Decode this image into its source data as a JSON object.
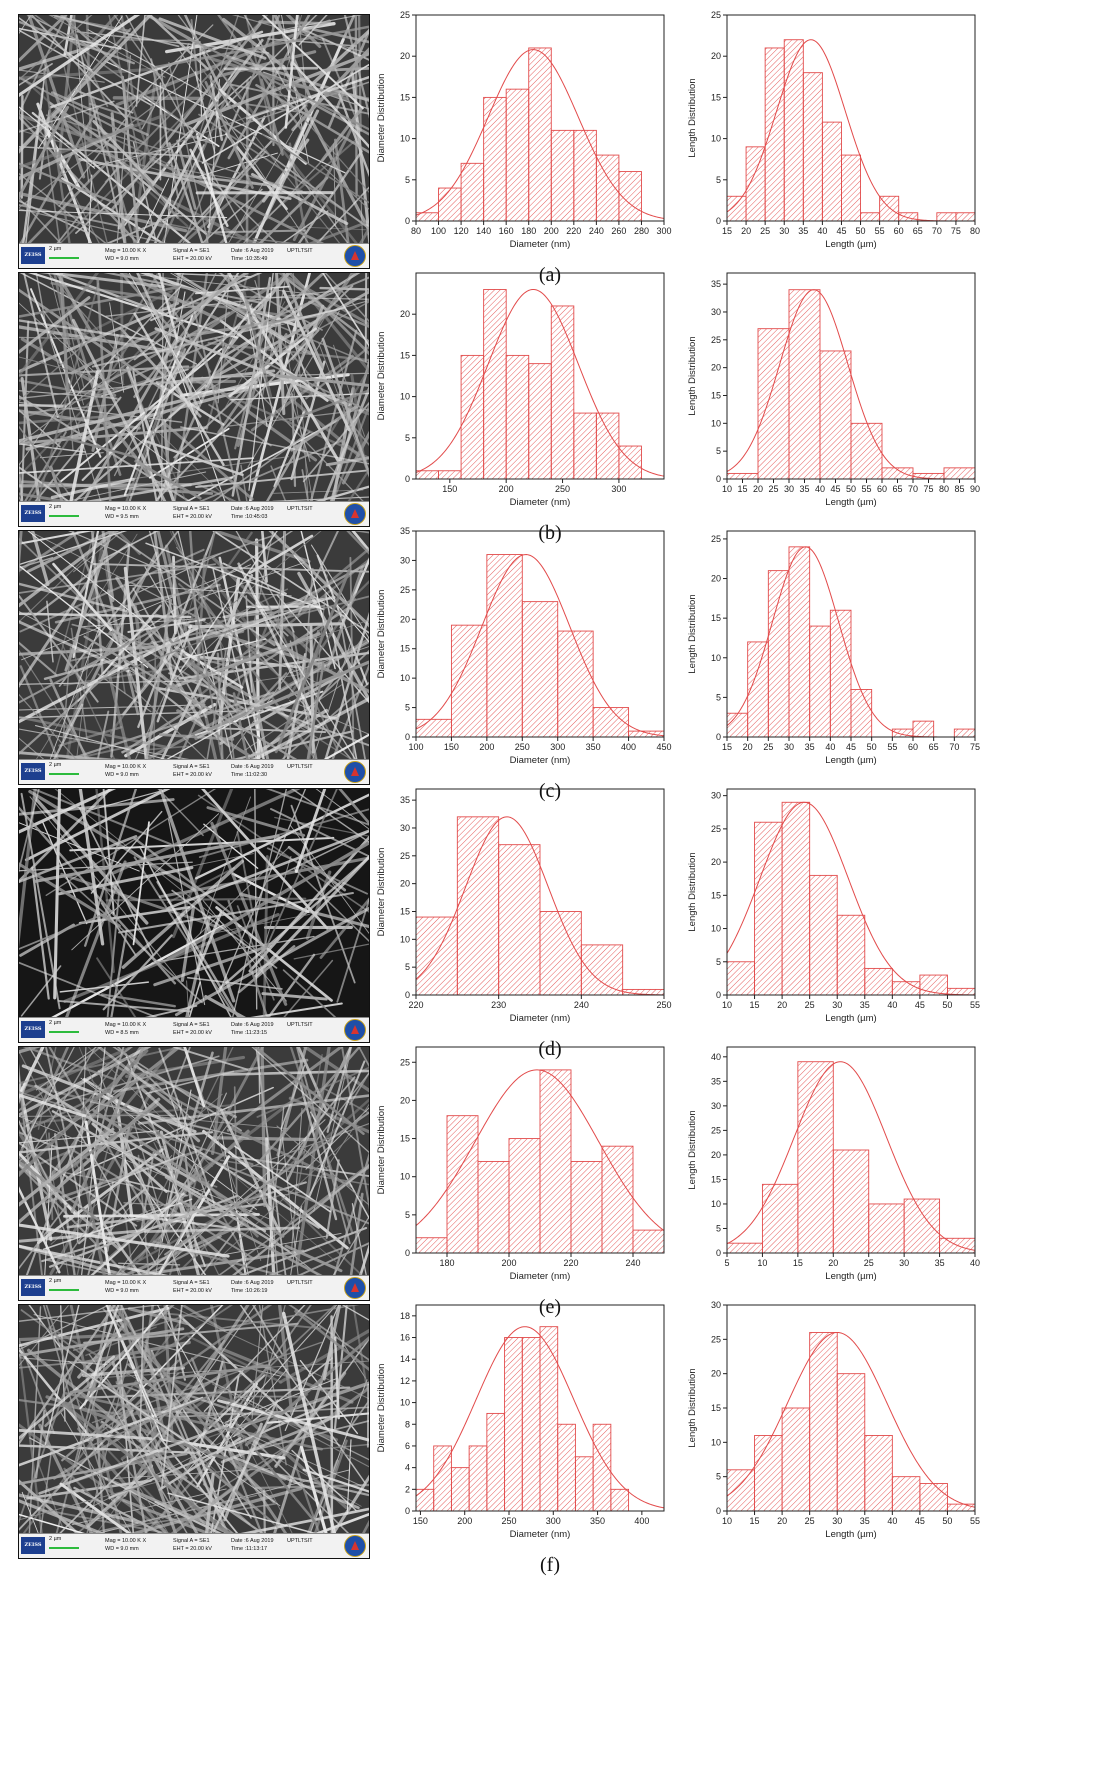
{
  "panels": [
    {
      "label": "(a)",
      "sem": {
        "brand": "ZEISS",
        "scale": "2 µm",
        "mag": "Mag = 10.00 K X",
        "wd": "WD = 9.0 mm",
        "signal": "Signal A = SE1",
        "eht": "EHT = 20.00 kV",
        "date": "Date :6 Aug 2019",
        "time": "Time :10:35:49",
        "org": "UPTLTSIT"
      },
      "charts": [
        {
          "type": "bar",
          "ylabel": "Diameter Distribution",
          "xlabel": "Diameter (nm)",
          "xlim": [
            80,
            300
          ],
          "ylim": [
            0,
            25
          ],
          "xticks": [
            80,
            100,
            120,
            140,
            160,
            180,
            200,
            220,
            240,
            260,
            280,
            300
          ],
          "yticks": [
            0,
            5,
            10,
            15,
            20,
            25
          ],
          "bins": [
            [
              80,
              100,
              1
            ],
            [
              100,
              120,
              4
            ],
            [
              120,
              140,
              7
            ],
            [
              140,
              160,
              15
            ],
            [
              160,
              180,
              16
            ],
            [
              180,
              200,
              21
            ],
            [
              200,
              220,
              11
            ],
            [
              220,
              240,
              11
            ],
            [
              240,
              260,
              8
            ],
            [
              260,
              280,
              6
            ]
          ],
          "fit": {
            "mu": 184,
            "sigma": 40,
            "peak": 20.8
          }
        },
        {
          "type": "bar",
          "ylabel": "Length Distribution",
          "xlabel": "Length (µm)",
          "xlim": [
            15,
            80
          ],
          "ylim": [
            0,
            25
          ],
          "xticks": [
            15,
            20,
            25,
            30,
            35,
            40,
            45,
            50,
            55,
            60,
            65,
            70,
            75,
            80
          ],
          "yticks": [
            0,
            5,
            10,
            15,
            20,
            25
          ],
          "bins": [
            [
              15,
              20,
              3
            ],
            [
              20,
              25,
              9
            ],
            [
              25,
              30,
              21
            ],
            [
              30,
              35,
              22
            ],
            [
              35,
              40,
              18
            ],
            [
              40,
              45,
              12
            ],
            [
              45,
              50,
              8
            ],
            [
              50,
              55,
              1
            ],
            [
              55,
              60,
              3
            ],
            [
              60,
              65,
              1
            ],
            [
              65,
              70,
              0
            ],
            [
              70,
              75,
              1
            ],
            [
              75,
              80,
              1
            ]
          ],
          "fit": {
            "mu": 37,
            "sigma": 9,
            "peak": 22
          }
        }
      ]
    },
    {
      "label": "(b)",
      "sem": {
        "brand": "ZEISS",
        "scale": "2 µm",
        "mag": "Mag = 10.00 K X",
        "wd": "WD = 9.5 mm",
        "signal": "Signal A = SE1",
        "eht": "EHT = 20.00 kV",
        "date": "Date :6 Aug 2019",
        "time": "Time :10:45:03",
        "org": "UPTLTSIT"
      },
      "charts": [
        {
          "type": "bar",
          "ylabel": "Diameter Distribution",
          "xlabel": "Diameter (nm)",
          "xlim": [
            120,
            340
          ],
          "ylim": [
            0,
            25
          ],
          "xticks": [
            150,
            200,
            250,
            300
          ],
          "yticks": [
            0,
            5,
            10,
            15,
            20
          ],
          "bins": [
            [
              120,
              140,
              1
            ],
            [
              140,
              160,
              1
            ],
            [
              160,
              180,
              15
            ],
            [
              180,
              200,
              23
            ],
            [
              200,
              220,
              15
            ],
            [
              220,
              240,
              14
            ],
            [
              240,
              260,
              21
            ],
            [
              260,
              280,
              8
            ],
            [
              280,
              300,
              8
            ],
            [
              300,
              320,
              4
            ]
          ],
          "fit": {
            "mu": 224,
            "sigma": 40,
            "peak": 23
          }
        },
        {
          "type": "bar",
          "ylabel": "Length Distribution",
          "xlabel": "Length (µm)",
          "xlim": [
            10,
            90
          ],
          "ylim": [
            0,
            37
          ],
          "xticks": [
            10,
            15,
            20,
            25,
            30,
            35,
            40,
            45,
            50,
            55,
            60,
            65,
            70,
            75,
            80,
            85,
            90
          ],
          "yticks": [
            0,
            5,
            10,
            15,
            20,
            25,
            30,
            35
          ],
          "bins": [
            [
              10,
              20,
              1
            ],
            [
              20,
              30,
              27
            ],
            [
              30,
              40,
              34
            ],
            [
              40,
              50,
              23
            ],
            [
              50,
              60,
              10
            ],
            [
              60,
              70,
              2
            ],
            [
              70,
              80,
              1
            ],
            [
              80,
              90,
              2
            ]
          ],
          "fit": {
            "mu": 38,
            "sigma": 11,
            "peak": 34
          }
        }
      ]
    },
    {
      "label": "(c)",
      "sem": {
        "brand": "ZEISS",
        "scale": "2 µm",
        "mag": "Mag = 10.00 K X",
        "wd": "WD = 9.0 mm",
        "signal": "Signal A = SE1",
        "eht": "EHT = 20.00 kV",
        "date": "Date :6 Aug 2019",
        "time": "Time :11:02:30",
        "org": "UPTLTSIT"
      },
      "charts": [
        {
          "type": "bar",
          "ylabel": "Diameter Distribution",
          "xlabel": "Diameter (nm)",
          "xlim": [
            100,
            450
          ],
          "ylim": [
            0,
            35
          ],
          "xticks": [
            100,
            150,
            200,
            250,
            300,
            350,
            400,
            450
          ],
          "yticks": [
            0,
            5,
            10,
            15,
            20,
            25,
            30,
            35
          ],
          "bins": [
            [
              100,
              150,
              3
            ],
            [
              150,
              200,
              19
            ],
            [
              200,
              250,
              31
            ],
            [
              250,
              300,
              23
            ],
            [
              300,
              350,
              18
            ],
            [
              350,
              400,
              5
            ],
            [
              400,
              450,
              1
            ]
          ],
          "fit": {
            "mu": 255,
            "sigma": 62,
            "peak": 31
          }
        },
        {
          "type": "bar",
          "ylabel": "Length Distribution",
          "xlabel": "Length (µm)",
          "xlim": [
            15,
            75
          ],
          "ylim": [
            0,
            26
          ],
          "xticks": [
            15,
            20,
            25,
            30,
            35,
            40,
            45,
            50,
            55,
            60,
            65,
            70,
            75
          ],
          "yticks": [
            0,
            5,
            10,
            15,
            20,
            25
          ],
          "bins": [
            [
              15,
              20,
              3
            ],
            [
              20,
              25,
              12
            ],
            [
              25,
              30,
              21
            ],
            [
              30,
              35,
              24
            ],
            [
              35,
              40,
              14
            ],
            [
              40,
              45,
              16
            ],
            [
              45,
              50,
              6
            ],
            [
              50,
              55,
              0
            ],
            [
              55,
              60,
              1
            ],
            [
              60,
              65,
              2
            ],
            [
              65,
              70,
              0
            ],
            [
              70,
              75,
              1
            ]
          ],
          "fit": {
            "mu": 34,
            "sigma": 8,
            "peak": 24
          }
        }
      ]
    },
    {
      "label": "(d)",
      "sem": {
        "brand": "ZEISS",
        "scale": "2 µm",
        "mag": "Mag = 10.00 K X",
        "wd": "WD = 8.5 mm",
        "signal": "Signal A = SE1",
        "eht": "EHT = 20.00 kV",
        "date": "Date :6 Aug 2019",
        "time": "Time :11:23:15",
        "org": "UPTLTSIT"
      },
      "charts": [
        {
          "type": "bar",
          "ylabel": "Diameter Distribution",
          "xlabel": "Diameter (nm)",
          "xlim": [
            220,
            250
          ],
          "ylim": [
            0,
            37
          ],
          "xticks": [
            220,
            230,
            240,
            250
          ],
          "yticks": [
            0,
            5,
            10,
            15,
            20,
            25,
            30,
            35
          ],
          "bins": [
            [
              220,
              225,
              14
            ],
            [
              225,
              230,
              32
            ],
            [
              230,
              235,
              27
            ],
            [
              235,
              240,
              15
            ],
            [
              240,
              245,
              9
            ],
            [
              245,
              250,
              1
            ]
          ],
          "fit": {
            "mu": 231,
            "sigma": 5,
            "peak": 32
          }
        },
        {
          "type": "bar",
          "ylabel": "Length Distribution",
          "xlabel": "Length (µm)",
          "xlim": [
            10,
            55
          ],
          "ylim": [
            0,
            31
          ],
          "xticks": [
            10,
            15,
            20,
            25,
            30,
            35,
            40,
            45,
            50,
            55
          ],
          "yticks": [
            0,
            5,
            10,
            15,
            20,
            25,
            30
          ],
          "bins": [
            [
              10,
              15,
              5
            ],
            [
              15,
              20,
              26
            ],
            [
              20,
              25,
              29
            ],
            [
              25,
              30,
              18
            ],
            [
              30,
              35,
              12
            ],
            [
              35,
              40,
              4
            ],
            [
              40,
              45,
              2
            ],
            [
              45,
              50,
              3
            ],
            [
              50,
              55,
              1
            ]
          ],
          "fit": {
            "mu": 24,
            "sigma": 8,
            "peak": 29
          }
        }
      ]
    },
    {
      "label": "(e)",
      "sem": {
        "brand": "ZEISS",
        "scale": "2 µm",
        "mag": "Mag = 10.00 K X",
        "wd": "WD = 9.0 mm",
        "signal": "Signal A = SE1",
        "eht": "EHT = 20.00 kV",
        "date": "Date :6 Aug 2019",
        "time": "Time :10:26:19",
        "org": "UPTLTSIT"
      },
      "charts": [
        {
          "type": "bar",
          "ylabel": "Diameter Distribution",
          "xlabel": "Diameter (nm)",
          "xlim": [
            170,
            250
          ],
          "ylim": [
            0,
            27
          ],
          "xticks": [
            180,
            200,
            220,
            240
          ],
          "yticks": [
            0,
            5,
            10,
            15,
            20,
            25
          ],
          "bins": [
            [
              170,
              180,
              2
            ],
            [
              180,
              190,
              18
            ],
            [
              190,
              200,
              12
            ],
            [
              200,
              210,
              15
            ],
            [
              210,
              220,
              24
            ],
            [
              220,
              230,
              12
            ],
            [
              230,
              240,
              14
            ],
            [
              240,
              250,
              3
            ]
          ],
          "fit": {
            "mu": 209,
            "sigma": 20,
            "peak": 24
          }
        },
        {
          "type": "bar",
          "ylabel": "Length Distribution",
          "xlabel": "Length (µm)",
          "xlim": [
            5,
            40
          ],
          "ylim": [
            0,
            42
          ],
          "xticks": [
            5,
            10,
            15,
            20,
            25,
            30,
            35,
            40
          ],
          "yticks": [
            0,
            5,
            10,
            15,
            20,
            25,
            30,
            35,
            40
          ],
          "bins": [
            [
              5,
              10,
              2
            ],
            [
              10,
              15,
              14
            ],
            [
              15,
              20,
              39
            ],
            [
              20,
              25,
              21
            ],
            [
              25,
              30,
              10
            ],
            [
              30,
              35,
              11
            ],
            [
              35,
              40,
              3
            ]
          ],
          "fit": {
            "mu": 21,
            "sigma": 6.5,
            "peak": 39
          }
        }
      ]
    },
    {
      "label": "(f)",
      "sem": {
        "brand": "ZEISS",
        "scale": "2 µm",
        "mag": "Mag = 10.00 K X",
        "wd": "WD = 9.0 mm",
        "signal": "Signal A = SE1",
        "eht": "EHT = 20.00 kV",
        "date": "Date :6 Aug 2019",
        "time": "Time :11:13:17",
        "org": "UPTLTSIT"
      },
      "charts": [
        {
          "type": "bar",
          "ylabel": "Diameter Distribution",
          "xlabel": "Diameter (nm)",
          "xlim": [
            145,
            425
          ],
          "ylim": [
            0,
            19
          ],
          "xticks": [
            150,
            200,
            250,
            300,
            350,
            400
          ],
          "yticks": [
            0,
            2,
            4,
            6,
            8,
            10,
            12,
            14,
            16,
            18
          ],
          "bins": [
            [
              145,
              165,
              2
            ],
            [
              165,
              185,
              6
            ],
            [
              185,
              205,
              4
            ],
            [
              205,
              225,
              6
            ],
            [
              225,
              245,
              9
            ],
            [
              245,
              265,
              16
            ],
            [
              265,
              285,
              16
            ],
            [
              285,
              305,
              17
            ],
            [
              305,
              325,
              8
            ],
            [
              325,
              345,
              5
            ],
            [
              345,
              365,
              8
            ],
            [
              365,
              385,
              2
            ]
          ],
          "fit": {
            "mu": 268,
            "sigma": 55,
            "peak": 17
          }
        },
        {
          "type": "bar",
          "ylabel": "Length Distribution",
          "xlabel": "Length (µm)",
          "xlim": [
            10,
            55
          ],
          "ylim": [
            0,
            30
          ],
          "xticks": [
            10,
            15,
            20,
            25,
            30,
            35,
            40,
            45,
            50,
            55
          ],
          "yticks": [
            0,
            5,
            10,
            15,
            20,
            25,
            30
          ],
          "bins": [
            [
              10,
              15,
              6
            ],
            [
              15,
              20,
              11
            ],
            [
              20,
              25,
              15
            ],
            [
              25,
              30,
              26
            ],
            [
              30,
              35,
              20
            ],
            [
              35,
              40,
              11
            ],
            [
              40,
              45,
              5
            ],
            [
              45,
              50,
              4
            ],
            [
              50,
              55,
              1
            ]
          ],
          "fit": {
            "mu": 30,
            "sigma": 9,
            "peak": 26
          }
        }
      ]
    }
  ]
}
